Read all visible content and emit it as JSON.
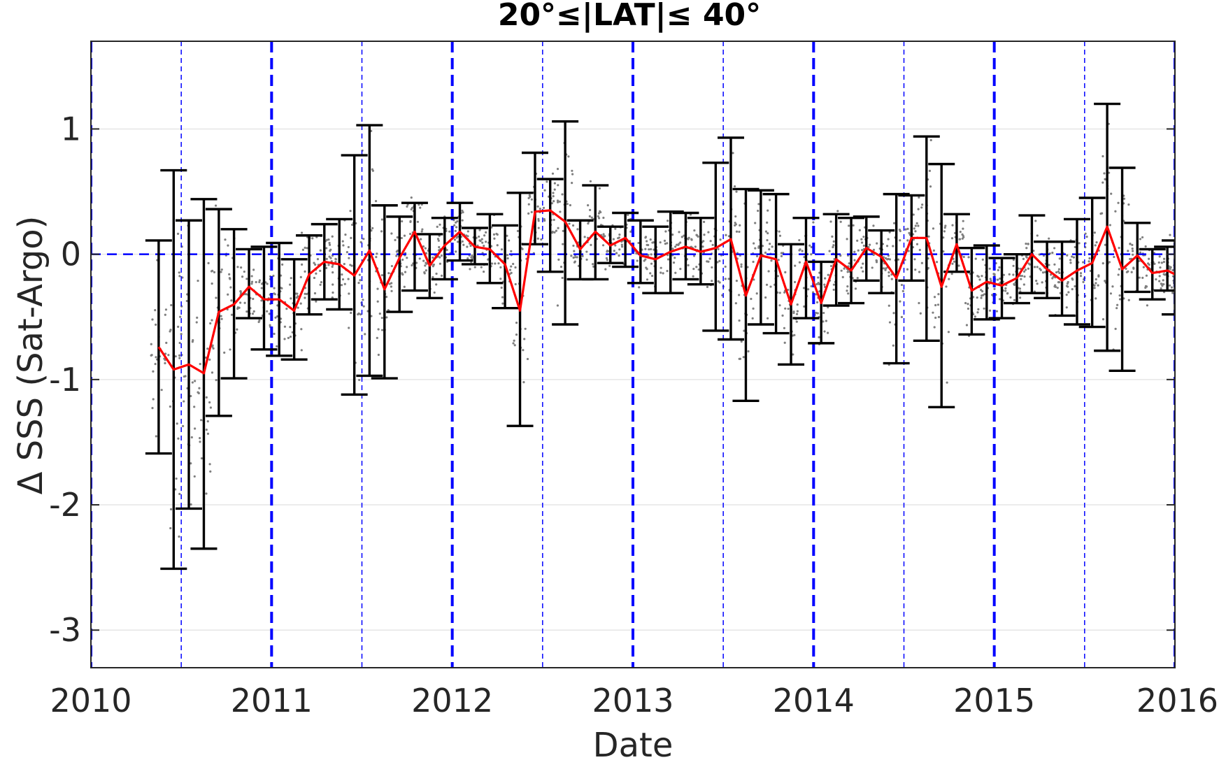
{
  "chart_data": {
    "type": "line",
    "title": "20°≤|LAT|≤ 40°",
    "xlabel": "Date",
    "ylabel": "Δ SSS (Sat-Argo)",
    "xlim": [
      2010,
      2016
    ],
    "ylim": [
      -3.3,
      1.7
    ],
    "xticks": [
      2010,
      2011,
      2012,
      2013,
      2014,
      2015,
      2016
    ],
    "xtick_labels": [
      "2010",
      "2011",
      "2012",
      "2013",
      "2014",
      "2015",
      "2016"
    ],
    "yticks": [
      -3,
      -2,
      -1,
      0,
      1
    ],
    "ytick_labels": [
      "-3",
      "-2",
      "-1",
      "0",
      "1"
    ],
    "grid": "horizontal",
    "year_markers": [
      2010,
      2011,
      2012,
      2013,
      2014,
      2015,
      2016
    ],
    "half_year_markers": [
      2010.5,
      2011.5,
      2012.5,
      2013.5,
      2014.5,
      2015.5
    ],
    "zero_line": 0,
    "colors": {
      "mean": "#ff0000",
      "errorbar": "#000000",
      "markers": "#0000ff",
      "scatter": "#7f7f7f",
      "grid": "#e6e6e6"
    },
    "series": [
      {
        "x": [
          2010.375,
          2010.458,
          2010.542,
          2010.625,
          2010.708,
          2010.792,
          2010.875,
          2010.958,
          2011.042,
          2011.125,
          2011.208,
          2011.292,
          2011.375,
          2011.458,
          2011.542,
          2011.625,
          2011.708,
          2011.792,
          2011.875,
          2011.958,
          2012.042,
          2012.125,
          2012.208,
          2012.292,
          2012.375,
          2012.458,
          2012.542,
          2012.625,
          2012.708,
          2012.792,
          2012.875,
          2012.958,
          2013.042,
          2013.125,
          2013.208,
          2013.292,
          2013.375,
          2013.458,
          2013.542,
          2013.625,
          2013.708,
          2013.792,
          2013.875,
          2013.958,
          2014.042,
          2014.125,
          2014.208,
          2014.292,
          2014.375,
          2014.458,
          2014.542,
          2014.625,
          2014.708,
          2014.792,
          2014.875,
          2014.958,
          2015.042,
          2015.125,
          2015.208,
          2015.292,
          2015.375,
          2015.458,
          2015.542,
          2015.625,
          2015.708,
          2015.792,
          2015.875,
          2015.958,
          2016.0
        ],
        "y": [
          -0.74,
          -0.92,
          -0.88,
          -0.95,
          -0.46,
          -0.4,
          -0.26,
          -0.36,
          -0.36,
          -0.45,
          -0.16,
          -0.06,
          -0.08,
          -0.17,
          0.03,
          -0.28,
          -0.03,
          0.18,
          -0.09,
          0.07,
          0.18,
          0.06,
          0.04,
          -0.08,
          -0.45,
          0.34,
          0.35,
          0.26,
          0.04,
          0.18,
          0.07,
          0.13,
          -0.01,
          -0.04,
          0.02,
          0.06,
          0.02,
          0.05,
          0.12,
          -0.33,
          -0.01,
          -0.04,
          -0.4,
          -0.06,
          -0.39,
          -0.04,
          -0.13,
          0.05,
          -0.02,
          -0.19,
          0.13,
          0.13,
          -0.26,
          0.08,
          -0.29,
          -0.22,
          -0.25,
          -0.19,
          0.0,
          -0.12,
          -0.21,
          -0.13,
          -0.07,
          0.22,
          -0.12,
          -0.01,
          -0.15,
          -0.13,
          -0.16
        ],
        "lower": [
          -1.59,
          -2.51,
          -2.03,
          -2.35,
          -1.29,
          -0.99,
          -0.51,
          -0.76,
          -0.81,
          -0.84,
          -0.48,
          -0.36,
          -0.44,
          -1.12,
          -0.97,
          -0.99,
          -0.46,
          -0.29,
          -0.35,
          -0.2,
          -0.05,
          -0.08,
          -0.23,
          -0.43,
          -1.37,
          0.08,
          -0.14,
          -0.56,
          -0.2,
          -0.2,
          -0.07,
          -0.1,
          -0.23,
          -0.31,
          -0.31,
          -0.2,
          -0.24,
          -0.61,
          -0.68,
          -1.17,
          -0.56,
          -0.63,
          -0.88,
          -0.51,
          -0.71,
          -0.41,
          -0.39,
          -0.21,
          -0.31,
          -0.87,
          -0.21,
          -0.69,
          -1.22,
          -0.14,
          -0.64,
          -0.52,
          -0.51,
          -0.39,
          -0.31,
          -0.35,
          -0.49,
          -0.56,
          -0.58,
          -0.77,
          -0.93,
          -0.3,
          -0.36,
          -0.29,
          -0.48
        ],
        "upper": [
          0.11,
          0.67,
          0.27,
          0.44,
          0.36,
          0.2,
          0.04,
          0.06,
          0.09,
          -0.04,
          0.15,
          0.24,
          0.28,
          0.79,
          1.03,
          0.39,
          0.3,
          0.41,
          0.16,
          0.29,
          0.41,
          0.21,
          0.32,
          0.23,
          0.49,
          0.81,
          0.6,
          1.06,
          0.27,
          0.55,
          0.22,
          0.33,
          0.27,
          0.22,
          0.34,
          0.33,
          0.29,
          0.73,
          0.93,
          0.52,
          0.51,
          0.48,
          0.08,
          0.29,
          -0.06,
          0.32,
          0.29,
          0.3,
          0.19,
          0.48,
          0.47,
          0.94,
          0.72,
          0.32,
          0.05,
          0.07,
          -0.03,
          0.0,
          0.31,
          0.1,
          0.1,
          0.28,
          0.45,
          1.2,
          0.69,
          0.25,
          0.04,
          0.06,
          0.11
        ]
      }
    ]
  }
}
